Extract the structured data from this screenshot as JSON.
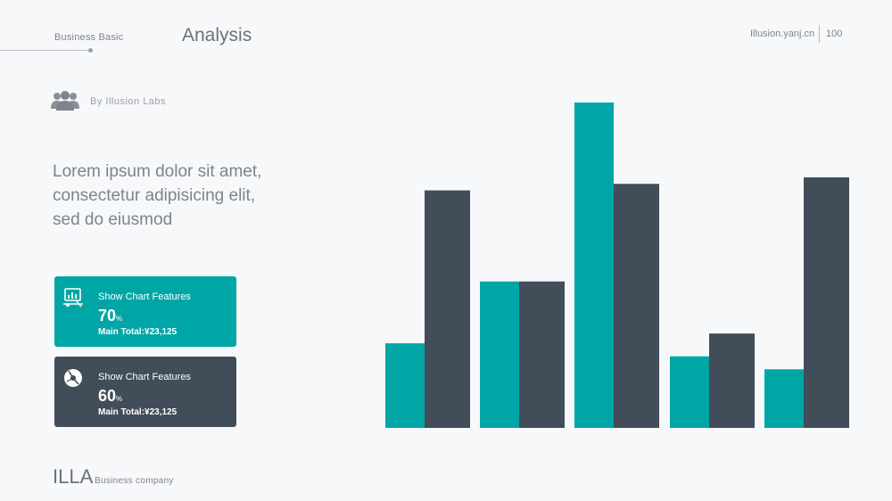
{
  "header": {
    "section": "Business Basic",
    "title": "Analysis",
    "site": "Illusion.yanj.cn",
    "page_number": "100"
  },
  "author": {
    "icon": "people-icon",
    "byline": "By  Illusion  Labs"
  },
  "body_text": [
    "Lorem ipsum dolor sit amet,",
    "consectetur adipisicing elit,",
    "sed do eiusmod"
  ],
  "cards": [
    {
      "icon": "chart-board-icon",
      "label": "Show Chart Features",
      "value": "70",
      "unit": "%",
      "total": "Main Total:¥23,125",
      "color": "#00a6a6"
    },
    {
      "icon": "disc-icon",
      "label": "Show Chart Features",
      "value": "60",
      "unit": "%",
      "total": "Main Total:¥23,125",
      "color": "#414d59"
    }
  ],
  "footer": {
    "brand": "ILLA",
    "subtitle": "Business company"
  },
  "colors": {
    "teal": "#00a6a6",
    "dark": "#414d59",
    "text": "#7d848c"
  },
  "chart_data": {
    "type": "bar",
    "categories": [
      "",
      "",
      "",
      "",
      ""
    ],
    "series": [
      {
        "values": [
          26,
          45,
          100,
          22,
          18
        ],
        "color": "#00a6a6"
      },
      {
        "values": [
          73,
          45,
          75,
          29,
          77
        ],
        "color": "#414d59"
      }
    ],
    "ylim": [
      0,
      100
    ],
    "grid": false,
    "legend": "none",
    "title": "",
    "xlabel": "",
    "ylabel": ""
  }
}
